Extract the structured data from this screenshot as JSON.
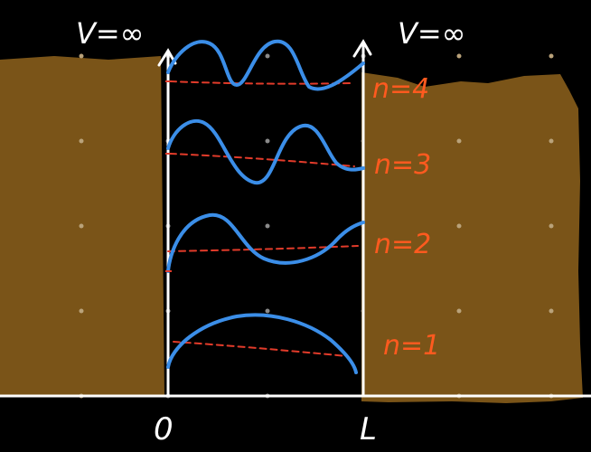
{
  "labels": {
    "potential_left": "V=∞",
    "potential_right": "V=∞",
    "x_origin": "0",
    "x_end": "L"
  },
  "levels": [
    {
      "label": "n=4",
      "n": 4
    },
    {
      "label": "n=3",
      "n": 3
    },
    {
      "label": "n=2",
      "n": 2
    },
    {
      "label": "n=1",
      "n": 1
    }
  ],
  "colors": {
    "background": "#000000",
    "wall": "#7a5418",
    "axis": "#ffffff",
    "wavefunction": "#3b8ee8",
    "energy_level": "#e23b2a",
    "level_label": "#ff5a1f",
    "grid_dot": "#8a8a8a"
  }
}
